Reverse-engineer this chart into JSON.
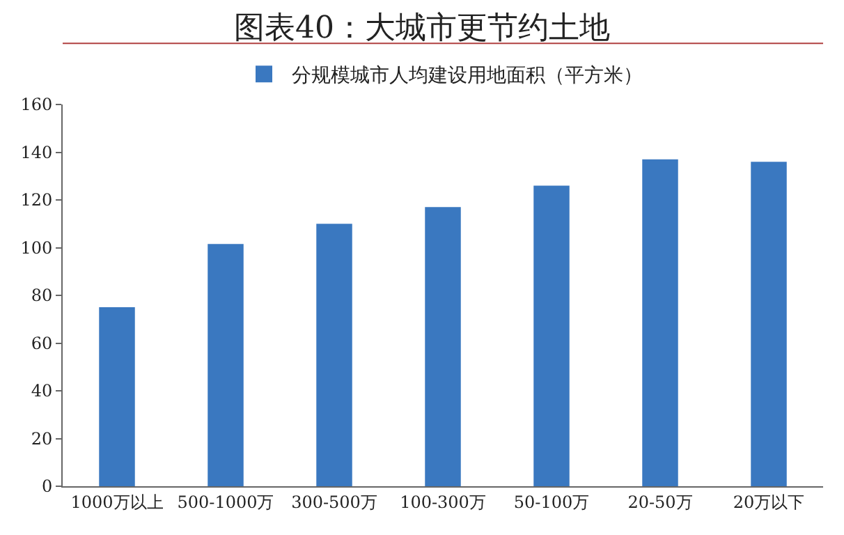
{
  "chart_data": {
    "type": "bar",
    "title": "图表40：大城市更节约土地",
    "categories": [
      "1000万以上",
      "500-1000万",
      "300-500万",
      "100-300万",
      "50-100万",
      "20-50万",
      "20万以下"
    ],
    "series": [
      {
        "name": "分规模城市人均建设用地面积（平方米）",
        "color": "#3a78c0",
        "values": [
          75,
          101.5,
          110,
          117,
          126,
          137,
          136
        ]
      }
    ],
    "ylim": [
      0,
      160
    ],
    "yticks": [
      0,
      20,
      40,
      60,
      80,
      100,
      120,
      140,
      160
    ],
    "legend": "top"
  }
}
